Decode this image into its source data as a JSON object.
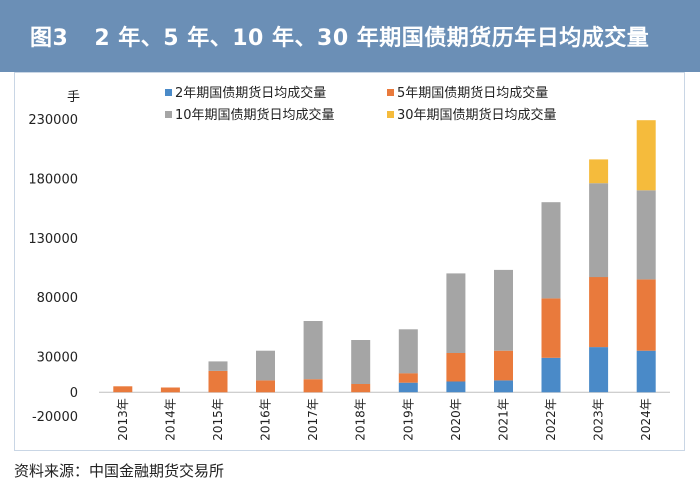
{
  "header": {
    "figure_label": "图3",
    "title": "2 年、5 年、10 年、30 年期国债期货历年日均成交量"
  },
  "source_text": "资料来源：中国金融期货交易所",
  "colors": {
    "title_bg": "#6b8fb6",
    "s2y": "#4a8ac8",
    "s5y": "#e97a3c",
    "s10y": "#a5a5a5",
    "s30y": "#f5bb3c"
  },
  "chart_data": {
    "type": "bar",
    "stacked": true,
    "title": "2 年、5 年、10 年、30 年期国债期货历年日均成交量",
    "ylabel": "手",
    "xlabel": "",
    "ylim": [
      -20000,
      230000
    ],
    "yticks": [
      -20000,
      0,
      30000,
      80000,
      130000,
      180000,
      230000
    ],
    "ytick_labels": [
      "-20000",
      "0",
      "30000",
      "80000",
      "130000",
      "180000",
      "230000"
    ],
    "categories": [
      "2013年",
      "2014年",
      "2015年",
      "2016年",
      "2017年",
      "2018年",
      "2019年",
      "2020年",
      "2021年",
      "2022年",
      "2023年",
      "2024年"
    ],
    "legend_position": "top-right",
    "series": [
      {
        "name": "2年期国债期货日均成交量",
        "color": "#4a8ac8",
        "values": [
          0,
          0,
          0,
          0,
          0,
          0,
          8000,
          9000,
          10000,
          29000,
          38000,
          35000
        ]
      },
      {
        "name": "5年期国债期货日均成交量",
        "color": "#e97a3c",
        "values": [
          5000,
          4000,
          18000,
          10000,
          11000,
          7000,
          8000,
          24000,
          25000,
          50000,
          59000,
          60000
        ]
      },
      {
        "name": "10年期国债期货日均成交量",
        "color": "#a5a5a5",
        "values": [
          0,
          0,
          8000,
          25000,
          49000,
          37000,
          37000,
          67000,
          68000,
          81000,
          79000,
          75000
        ]
      },
      {
        "name": "30年期国债期货日均成交量",
        "color": "#f5bb3c",
        "values": [
          0,
          0,
          0,
          0,
          0,
          0,
          0,
          0,
          0,
          0,
          20000,
          59000
        ]
      }
    ]
  }
}
